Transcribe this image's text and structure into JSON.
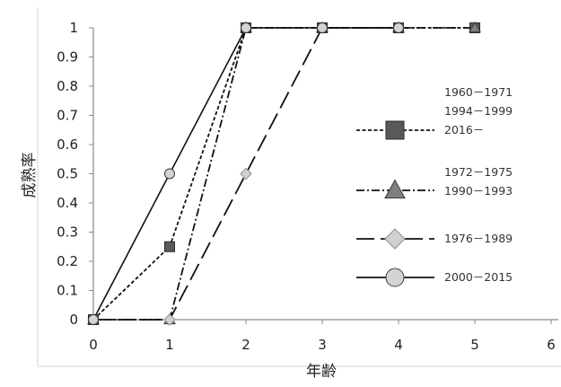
{
  "chart_data": {
    "type": "line",
    "xlabel": "年齢",
    "ylabel": "成熟率",
    "xlim": [
      0,
      6
    ],
    "ylim": [
      0,
      1
    ],
    "x_ticks": [
      0,
      1,
      2,
      3,
      4,
      5,
      6
    ],
    "y_ticks": [
      0,
      0.1,
      0.2,
      0.3,
      0.4,
      0.5,
      0.6,
      0.7,
      0.8,
      0.9,
      1
    ],
    "grid": false,
    "legend_position": "right",
    "series": [
      {
        "name": "1960 – 1971\n1994 – 1999\n2016 –",
        "label_lines": [
          "1960－1971",
          "1994－1999",
          "2016－"
        ],
        "marker": "square",
        "line_style": "short-dash",
        "points": [
          [
            0,
            0
          ],
          [
            1,
            0.25
          ],
          [
            2,
            1
          ],
          [
            3,
            1
          ],
          [
            4,
            1
          ],
          [
            5,
            1
          ]
        ]
      },
      {
        "name": "1972 – 1975\n1990 – 1993",
        "label_lines": [
          "1972－1975",
          "1990－1993"
        ],
        "marker": "triangle",
        "line_style": "dash-dot",
        "points": [
          [
            0,
            0
          ],
          [
            1,
            0
          ],
          [
            2,
            1
          ],
          [
            3,
            1
          ],
          [
            4,
            1
          ],
          [
            5,
            1
          ]
        ]
      },
      {
        "name": "1976 – 1989",
        "label_lines": [
          "1976－1989"
        ],
        "marker": "diamond",
        "line_style": "long-dash",
        "points": [
          [
            0,
            0
          ],
          [
            1,
            0
          ],
          [
            2,
            0.5
          ],
          [
            3,
            1
          ],
          [
            4,
            1
          ]
        ]
      },
      {
        "name": "2000 – 2015",
        "label_lines": [
          "2000－2015"
        ],
        "marker": "circle",
        "line_style": "solid",
        "points": [
          [
            0,
            0
          ],
          [
            1,
            0.5
          ],
          [
            2,
            1
          ],
          [
            3,
            1
          ],
          [
            4,
            1
          ]
        ]
      }
    ]
  }
}
